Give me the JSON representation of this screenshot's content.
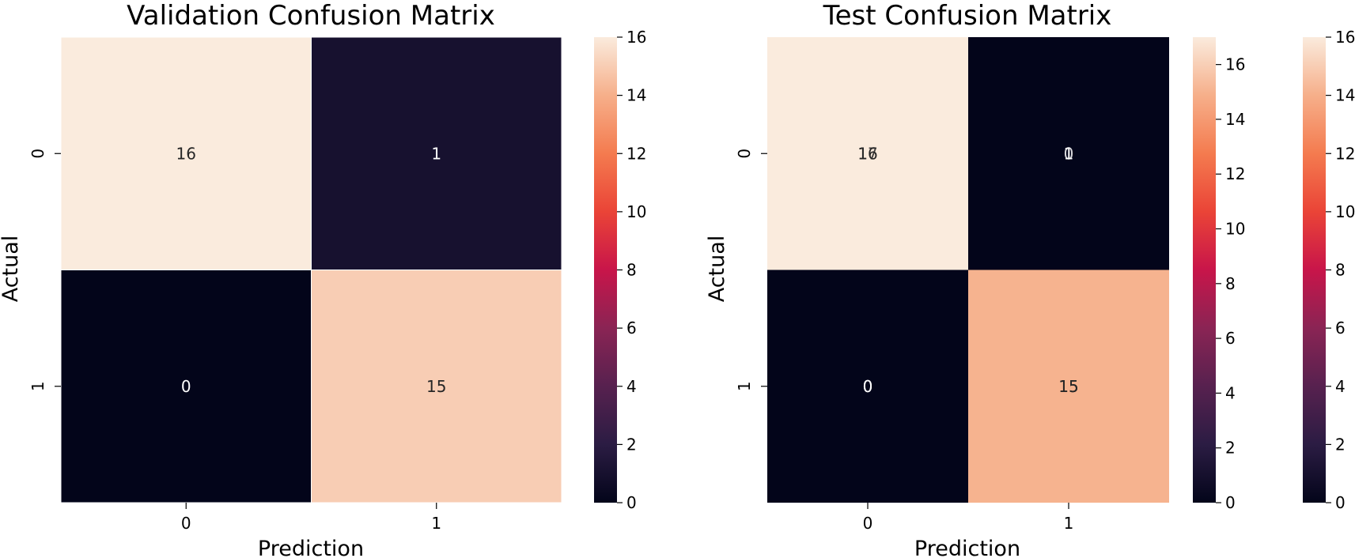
{
  "chart_data": [
    {
      "type": "heatmap",
      "title": "Validation Confusion Matrix",
      "xlabel": "Prediction",
      "ylabel": "Actual",
      "x_categories": [
        "0",
        "1"
      ],
      "y_categories": [
        "0",
        "1"
      ],
      "values": [
        [
          16,
          1
        ],
        [
          0,
          15
        ]
      ],
      "cell_labels": [
        [
          "16",
          "1"
        ],
        [
          "0",
          "15"
        ]
      ],
      "colorbars": [
        {
          "range": [
            0,
            16
          ],
          "ticks": [
            "0",
            "2",
            "4",
            "6",
            "8",
            "10",
            "12",
            "14",
            "16"
          ]
        }
      ]
    },
    {
      "type": "heatmap",
      "title": "Test Confusion Matrix",
      "xlabel": "Prediction",
      "ylabel": "Actual",
      "x_categories": [
        "0",
        "1"
      ],
      "y_categories": [
        "0",
        "1"
      ],
      "values": [
        [
          17,
          0
        ],
        [
          0,
          15
        ]
      ],
      "cell_labels": [
        [
          "16",
          "1"
        ],
        [
          "0",
          "15"
        ]
      ],
      "overlay_labels": [
        [
          "17",
          "0"
        ],
        [
          "0",
          "15"
        ]
      ],
      "colorbars": [
        {
          "range": [
            0,
            17
          ],
          "ticks": [
            "0",
            "2",
            "4",
            "6",
            "8",
            "10",
            "12",
            "14",
            "16"
          ]
        },
        {
          "range": [
            0,
            16
          ],
          "ticks": [
            "0",
            "2",
            "4",
            "6",
            "8",
            "10",
            "12",
            "14",
            "16"
          ]
        }
      ]
    }
  ]
}
